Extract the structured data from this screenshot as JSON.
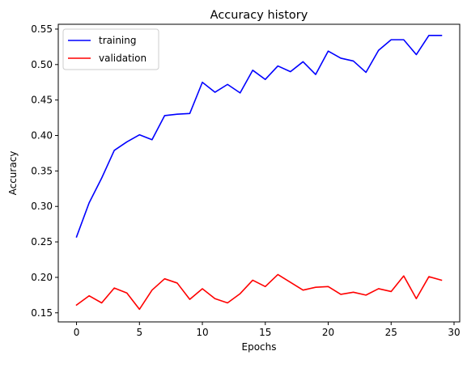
{
  "chart_data": {
    "type": "line",
    "title": "Accuracy history",
    "xlabel": "Epochs",
    "ylabel": "Accuracy",
    "xlim": [
      -1.45,
      30.45
    ],
    "ylim": [
      0.1372,
      0.5568
    ],
    "x_ticks": [
      0,
      5,
      10,
      15,
      20,
      25,
      30
    ],
    "y_ticks": [
      0.15,
      0.2,
      0.25,
      0.3,
      0.35,
      0.4,
      0.45,
      0.5,
      0.55
    ],
    "x_tick_labels": [
      "0",
      "5",
      "10",
      "15",
      "20",
      "25",
      "30"
    ],
    "y_tick_labels": [
      "0.15",
      "0.20",
      "0.25",
      "0.30",
      "0.35",
      "0.40",
      "0.45",
      "0.50",
      "0.55"
    ],
    "grid": false,
    "legend_position": "top-left",
    "x": [
      0,
      1,
      2,
      3,
      4,
      5,
      6,
      7,
      8,
      9,
      10,
      11,
      12,
      13,
      14,
      15,
      16,
      17,
      18,
      19,
      20,
      21,
      22,
      23,
      24,
      25,
      26,
      27,
      28,
      29
    ],
    "series": [
      {
        "name": "training",
        "color": "#0000ff",
        "values": [
          0.257,
          0.305,
          0.34,
          0.379,
          0.391,
          0.401,
          0.394,
          0.428,
          0.43,
          0.431,
          0.475,
          0.461,
          0.472,
          0.46,
          0.492,
          0.479,
          0.498,
          0.49,
          0.504,
          0.486,
          0.519,
          0.509,
          0.505,
          0.489,
          0.52,
          0.535,
          0.535,
          0.514,
          0.541,
          0.541
        ]
      },
      {
        "name": "validation",
        "color": "#ff0000",
        "values": [
          0.161,
          0.174,
          0.164,
          0.185,
          0.178,
          0.155,
          0.182,
          0.198,
          0.192,
          0.169,
          0.184,
          0.17,
          0.164,
          0.177,
          0.196,
          0.187,
          0.204,
          0.193,
          0.182,
          0.186,
          0.187,
          0.176,
          0.179,
          0.175,
          0.184,
          0.18,
          0.202,
          0.17,
          0.201,
          0.196
        ]
      }
    ]
  }
}
